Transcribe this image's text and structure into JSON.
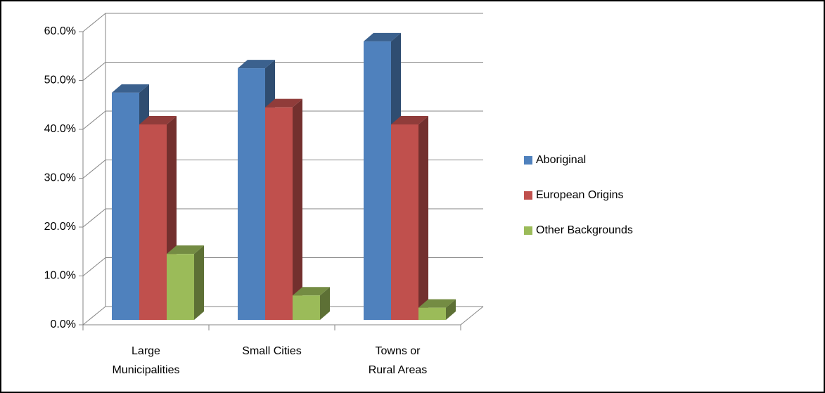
{
  "chart_data": {
    "type": "bar3d",
    "categories": [
      "Large Municipalities",
      "Small Cities",
      "Towns or Rural Areas"
    ],
    "series": [
      {
        "name": "Aboriginal",
        "color": "#4f81bd",
        "values": [
          46.5,
          51.5,
          57
        ]
      },
      {
        "name": "European Origins",
        "color": "#c0504d",
        "values": [
          40,
          43.5,
          40
        ]
      },
      {
        "name": "Other Backgrounds",
        "color": "#9bbb59",
        "values": [
          13.5,
          5,
          2.5
        ]
      }
    ],
    "ylim": [
      0,
      60
    ],
    "yticks": [
      {
        "value": 0,
        "label": "0.0%"
      },
      {
        "value": 10,
        "label": "10.0%"
      },
      {
        "value": 20,
        "label": "20.0%"
      },
      {
        "value": 30,
        "label": "30.0%"
      },
      {
        "value": 40,
        "label": "40.0%"
      },
      {
        "value": 50,
        "label": "50.0%"
      },
      {
        "value": 60,
        "label": "60.0%"
      }
    ],
    "grid": true,
    "legend": "right"
  }
}
